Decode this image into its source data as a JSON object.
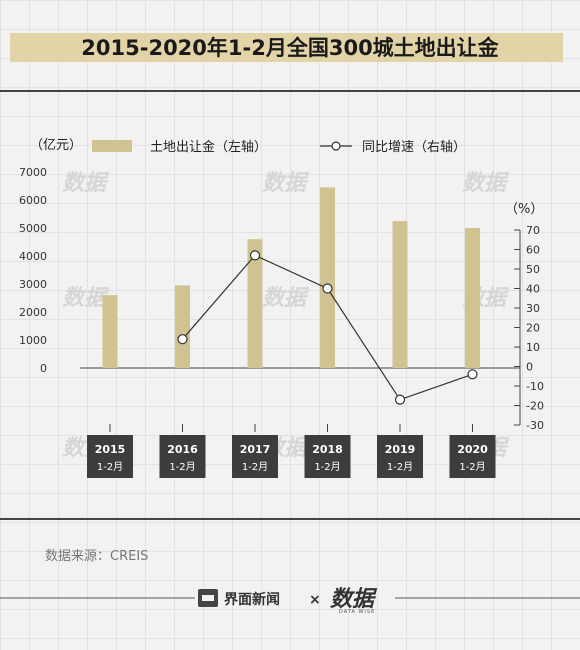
{
  "title": "2015-2020年1-2月全国300城土地出让金",
  "source": "数据来源：CREIS",
  "brand": {
    "jiemian": "界面新闻",
    "times": "×",
    "shuju": "数据",
    "shuju_sub": "DATA WISE"
  },
  "watermark": "数据",
  "colors": {
    "bar": "#d1c291",
    "line": "#333333",
    "category_bg": "#3d3d3d",
    "title_bar": "#e2d4a7"
  },
  "chart_data": {
    "type": "bar",
    "categories": [
      {
        "year": "2015",
        "period": "1-2月"
      },
      {
        "year": "2016",
        "period": "1-2月"
      },
      {
        "year": "2017",
        "period": "1-2月"
      },
      {
        "year": "2018",
        "period": "1-2月"
      },
      {
        "year": "2019",
        "period": "1-2月"
      },
      {
        "year": "2020",
        "period": "1-2月"
      }
    ],
    "series": [
      {
        "name": "土地出让金（左轴）",
        "type": "bar",
        "axis": "left",
        "values": [
          2600,
          2950,
          4600,
          6450,
          5250,
          5000
        ]
      },
      {
        "name": "同比增速（右轴）",
        "type": "line",
        "axis": "right",
        "values": [
          null,
          14,
          57,
          40,
          -17,
          -4
        ]
      }
    ],
    "y_left": {
      "unit": "（亿元）",
      "ylim": [
        0,
        7000
      ],
      "ticks": [
        0,
        1000,
        2000,
        3000,
        4000,
        5000,
        6000,
        7000
      ]
    },
    "y_right": {
      "unit": "（%）",
      "ylim": [
        -30,
        70
      ],
      "ticks": [
        70,
        60,
        50,
        40,
        30,
        20,
        10,
        0,
        -10,
        -20,
        -30
      ]
    },
    "legend_position": "top"
  }
}
